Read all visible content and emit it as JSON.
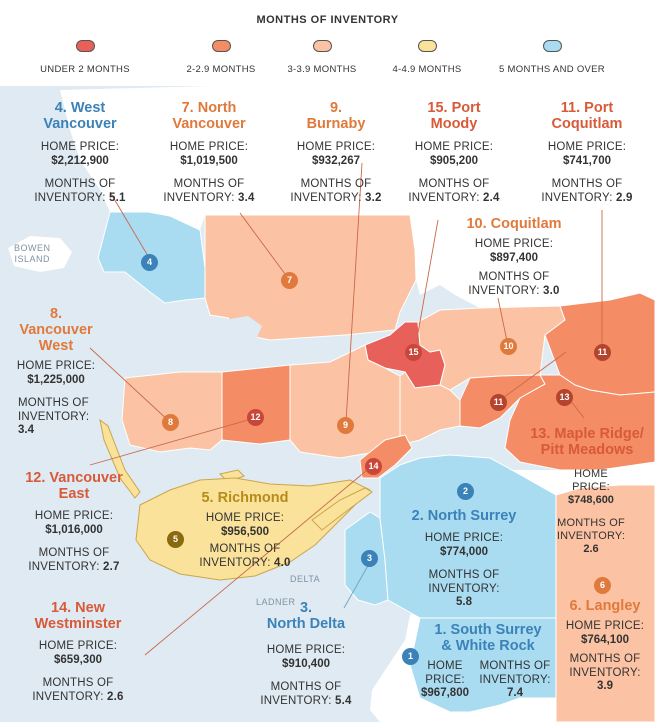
{
  "legend": {
    "title": "MONTHS OF INVENTORY",
    "items": [
      {
        "label": "UNDER 2 MONTHS",
        "color": "#e8605a"
      },
      {
        "label": "2-2.9 MONTHS",
        "color": "#f48c66"
      },
      {
        "label": "3-3.9 MONTHS",
        "color": "#fbc3a3"
      },
      {
        "label": "4-4.9 MONTHS",
        "color": "#fbe29a"
      },
      {
        "label": "5 MONTHS AND OVER",
        "color": "#a9dbf1"
      }
    ]
  },
  "geo_labels": {
    "bowen": "BOWEN\nISLAND",
    "delta": "DELTA",
    "ladner": "LADNER"
  },
  "regions": [
    {
      "num": "1",
      "name": "1. South Surrey\n& White Rock",
      "home_price_label": "HOME\nPRICE:",
      "home_price": "$967,800",
      "inv_label": "MONTHS OF\nINVENTORY:",
      "inv": "7.4"
    },
    {
      "num": "2",
      "name": "2. North Surrey",
      "home_price_label": "HOME PRICE:",
      "home_price": "$774,000",
      "inv_label": "MONTHS OF\nINVENTORY:",
      "inv": "5.8"
    },
    {
      "num": "3",
      "name": "3.\nNorth Delta",
      "home_price_label": "HOME PRICE:",
      "home_price": "$910,400",
      "inv_label": "MONTHS OF\nINVENTORY:",
      "inv": "5.4"
    },
    {
      "num": "4",
      "name": "4. West\nVancouver",
      "home_price_label": "HOME PRICE:",
      "home_price": "$2,212,900",
      "inv_label": "MONTHS OF\nINVENTORY:",
      "inv": "5.1"
    },
    {
      "num": "5",
      "name": "5. Richmond",
      "home_price_label": "HOME PRICE:",
      "home_price": "$956,500",
      "inv_label": "MONTHS OF\nINVENTORY:",
      "inv": "4.0"
    },
    {
      "num": "6",
      "name": "6. Langley",
      "home_price_label": "HOME PRICE:",
      "home_price": "$764,100",
      "inv_label": "MONTHS OF\nINVENTORY:",
      "inv": "3.9"
    },
    {
      "num": "7",
      "name": "7. North\nVancouver",
      "home_price_label": "HOME PRICE:",
      "home_price": "$1,019,500",
      "inv_label": "MONTHS OF\nINVENTORY:",
      "inv": "3.4"
    },
    {
      "num": "8",
      "name": "8.\nVancouver\nWest",
      "home_price_label": "HOME PRICE:",
      "home_price": "$1,225,000",
      "inv_label": "MONTHS OF\nINVENTORY:",
      "inv": "3.4"
    },
    {
      "num": "9",
      "name": "9.\nBurnaby",
      "home_price_label": "HOME PRICE:",
      "home_price": "$932,267",
      "inv_label": "MONTHS OF\nINVENTORY:",
      "inv": "3.2"
    },
    {
      "num": "10",
      "name": "10. Coquitlam",
      "home_price_label": "HOME PRICE:",
      "home_price": "$897,400",
      "inv_label": "MONTHS OF\nINVENTORY:",
      "inv": "3.0"
    },
    {
      "num": "11",
      "name": "11. Port\nCoquitlam",
      "home_price_label": "HOME PRICE:",
      "home_price": "$741,700",
      "inv_label": "MONTHS OF\nINVENTORY:",
      "inv": "2.9"
    },
    {
      "num": "12",
      "name": "12. Vancouver\nEast",
      "home_price_label": "HOME PRICE:",
      "home_price": "$1,016,000",
      "inv_label": "MONTHS OF\nINVENTORY:",
      "inv": "2.7"
    },
    {
      "num": "13",
      "name": "13. Maple Ridge/\nPitt Meadows",
      "home_price_label": "HOME\nPRICE:",
      "home_price": "$748,600",
      "inv_label": "MONTHS OF\nINVENTORY:",
      "inv": "2.6"
    },
    {
      "num": "14",
      "name": "14. New\nWestminster",
      "home_price_label": "HOME PRICE:",
      "home_price": "$659,300",
      "inv_label": "MONTHS OF\nINVENTORY:",
      "inv": "2.6"
    },
    {
      "num": "15",
      "name": "15. Port\nMoody",
      "home_price_label": "HOME PRICE:",
      "home_price": "$905,200",
      "inv_label": "MONTHS OF\nINVENTORY:",
      "inv": "2.4"
    }
  ]
}
